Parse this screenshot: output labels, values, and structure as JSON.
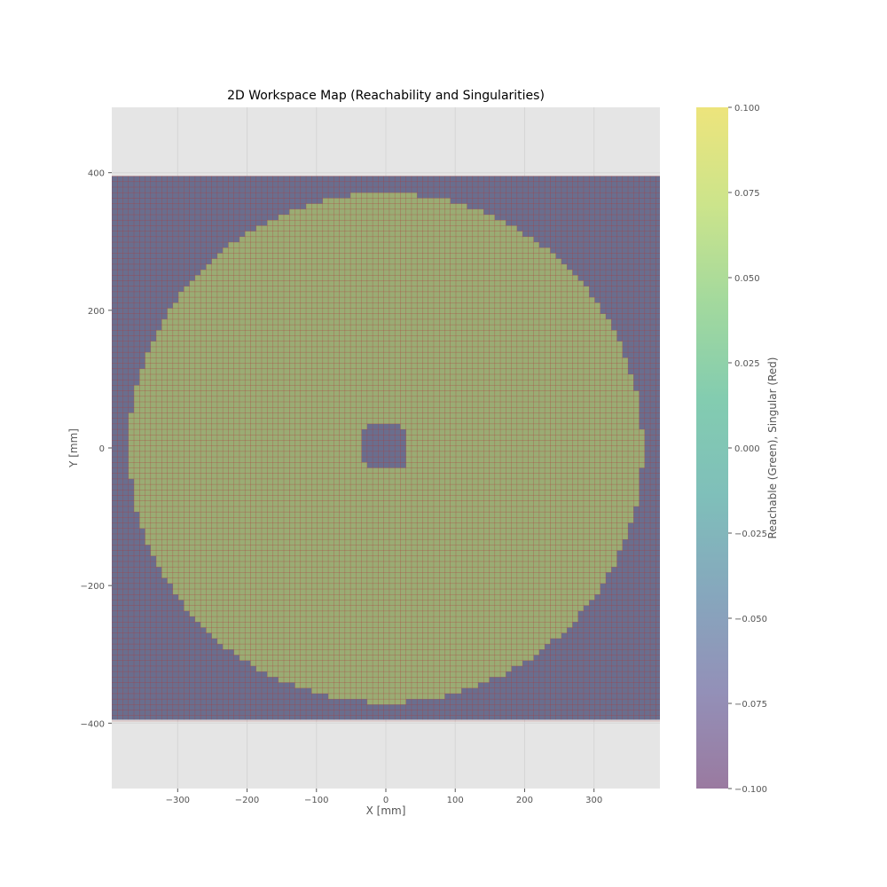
{
  "chart_data": {
    "type": "heatmap",
    "title": "2D Workspace Map (Reachability and Singularities)",
    "xlabel": "X [mm]",
    "ylabel": "Y [mm]",
    "xlim": [
      -395,
      395
    ],
    "ylim": [
      -495,
      495
    ],
    "xticks": [
      -300,
      -200,
      -100,
      0,
      100,
      200,
      300
    ],
    "yticks": [
      -400,
      -200,
      0,
      200,
      400
    ],
    "grid": true,
    "grid_extent": {
      "x": [
        -395,
        395
      ],
      "y": [
        -395,
        395
      ]
    },
    "cell_step": 8,
    "reachable_region": {
      "outer_radius": 370,
      "inner_hole_half_width": 32,
      "inner_hole_corner_radius": 12
    },
    "colors": {
      "reachable": "#9aac74",
      "singular": "#6a6e8e",
      "cell_edge": "#b03a3a",
      "axes_background": "#e5e5e5",
      "grid_line": "#d6d6d6"
    },
    "colorbar": {
      "label": "Reachable (Green), Singular (Red)",
      "range": [
        -0.1,
        0.1
      ],
      "ticks": [
        {
          "value": 0.1,
          "label": "0.100"
        },
        {
          "value": 0.075,
          "label": "0.075"
        },
        {
          "value": 0.05,
          "label": "0.050"
        },
        {
          "value": 0.025,
          "label": "0.025"
        },
        {
          "value": 0,
          "label": "0.000"
        },
        {
          "value": -0.025,
          "label": "−0.025"
        },
        {
          "value": -0.05,
          "label": "−0.050"
        },
        {
          "value": -0.075,
          "label": "−0.075"
        },
        {
          "value": -0.1,
          "label": "−0.100"
        }
      ],
      "gradient": [
        "#9a7aa0",
        "#9390b8",
        "#86a7bd",
        "#7fbfba",
        "#83ccb0",
        "#a3d99d",
        "#cce48b",
        "#ede47c"
      ]
    }
  }
}
